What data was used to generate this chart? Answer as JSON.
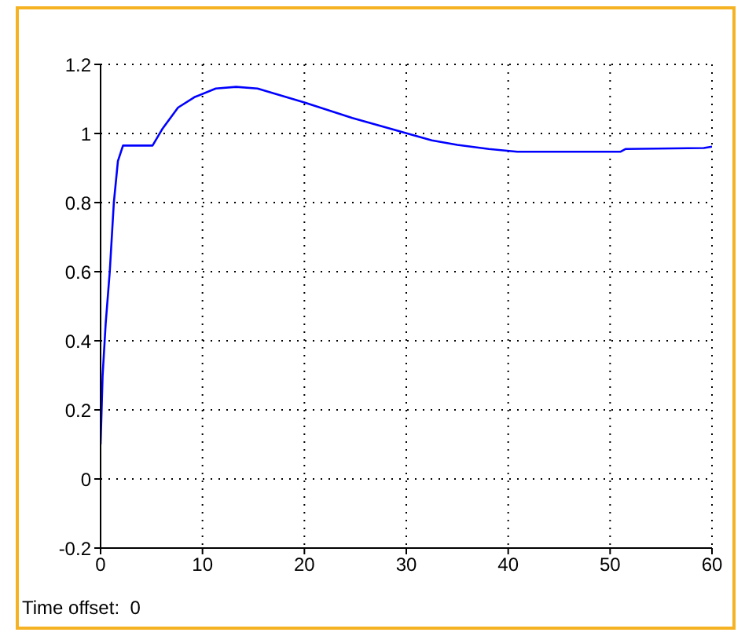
{
  "chart_data": {
    "type": "line",
    "x": [
      0,
      0.2,
      0.5,
      0.9,
      1.3,
      1.7,
      2.2,
      5.1,
      6.1,
      7.6,
      9.2,
      11.3,
      13.3,
      15.4,
      20,
      24.7,
      30.1,
      32.5,
      35,
      38.1,
      40.9,
      51,
      51.5,
      59.2,
      60
    ],
    "series": [
      {
        "color": "#0000ff",
        "values": [
          0.1,
          0.3,
          0.45,
          0.6,
          0.8,
          0.92,
          0.965,
          0.965,
          1.015,
          1.075,
          1.105,
          1.13,
          1.135,
          1.13,
          1.09,
          1.045,
          1.0,
          0.98,
          0.967,
          0.955,
          0.947,
          0.947,
          0.955,
          0.958,
          0.962
        ]
      }
    ],
    "xlim": [
      0,
      60
    ],
    "xticks": [
      0,
      10,
      20,
      30,
      40,
      50,
      60
    ],
    "ylim": [
      -0.2,
      1.2
    ],
    "yticks": [
      -0.2,
      0,
      0.2,
      0.4,
      0.6,
      0.8,
      1,
      1.2
    ],
    "grid": true,
    "line_style": "solid",
    "annotations": [
      "Time offset:  0"
    ]
  }
}
